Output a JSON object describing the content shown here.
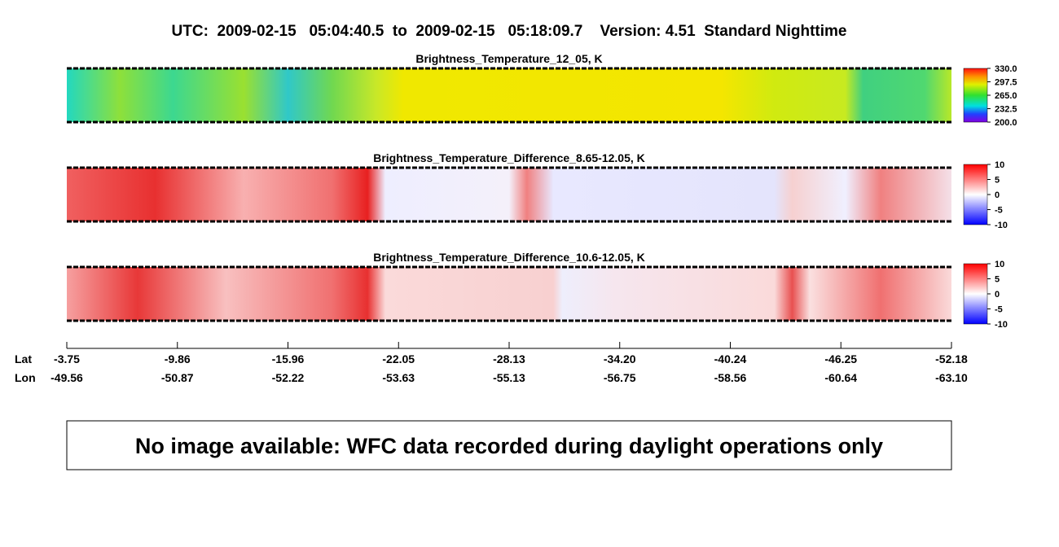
{
  "header": {
    "title": "UTC:  2009-02-15   05:04:40.5  to  2009-02-15   05:18:09.7    Version: 4.51  Standard Nighttime"
  },
  "panels": [
    {
      "title": "Brightness_Temperature_12_05, K",
      "colorbar": [
        "330.0",
        "297.5",
        "265.0",
        "232.5",
        "200.0"
      ]
    },
    {
      "title": "Brightness_Temperature_Difference_8.65-12.05, K",
      "colorbar": [
        "10",
        "5",
        "0",
        "-5",
        "-10"
      ]
    },
    {
      "title": "Brightness_Temperature_Difference_10.6-12.05, K",
      "colorbar": [
        "10",
        "5",
        "0",
        "-5",
        "-10"
      ]
    }
  ],
  "axis": {
    "lat_label": "Lat",
    "lon_label": "Lon",
    "lat": [
      "-3.75",
      "-9.86",
      "-15.96",
      "-22.05",
      "-28.13",
      "-34.20",
      "-40.24",
      "-46.25",
      "-52.18"
    ],
    "lon": [
      "-49.56",
      "-50.87",
      "-52.22",
      "-53.63",
      "-55.13",
      "-56.75",
      "-58.56",
      "-60.64",
      "-63.10"
    ]
  },
  "note": "No image available: WFC data recorded during daylight operations only"
}
